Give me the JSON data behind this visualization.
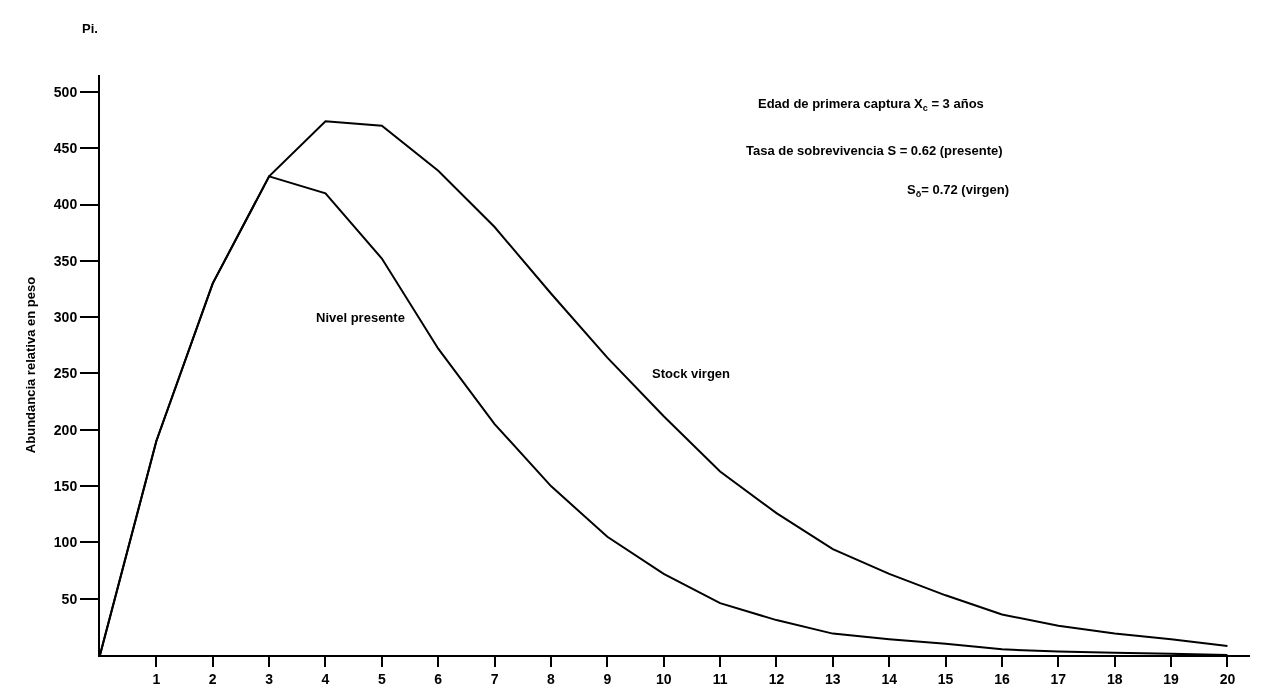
{
  "chart_data": {
    "type": "line",
    "ylabel": "Abundancia relativa en peso",
    "x": [
      0,
      1,
      2,
      3,
      4,
      5,
      6,
      7,
      8,
      9,
      10,
      11,
      12,
      13,
      14,
      15,
      16,
      17,
      18,
      19,
      20
    ],
    "series": [
      {
        "name": "Nivel presente",
        "color": "#000000",
        "values": [
          0,
          190,
          330,
          425,
          410,
          352,
          272,
          205,
          150,
          105,
          72,
          46,
          31,
          19,
          14,
          10,
          5,
          3,
          2,
          1,
          0
        ]
      },
      {
        "name": "Stock virgen",
        "color": "#000000",
        "values": [
          0,
          190,
          330,
          425,
          474,
          470,
          430,
          380,
          321,
          264,
          212,
          163,
          126,
          94,
          72,
          53,
          36,
          26,
          19,
          14,
          8
        ]
      }
    ],
    "xlim": [
      0,
      20.4
    ],
    "ylim": [
      0,
      515
    ],
    "xticks": [
      1,
      2,
      3,
      4,
      5,
      6,
      7,
      8,
      9,
      10,
      11,
      12,
      13,
      14,
      15,
      16,
      17,
      18,
      19,
      20
    ],
    "yticks": [
      50,
      100,
      150,
      200,
      250,
      300,
      350,
      400,
      450,
      500
    ],
    "annotations": [
      "Pi.",
      "Edad de primera captura X$_{c}$ = 3 años",
      "Tasa de sobrevivencia S = 0.62 (presente)",
      "S$_{ō}$= 0.72 (virgen)"
    ],
    "grid": false,
    "legend": false,
    "marker": "none",
    "line_style": "solid"
  }
}
